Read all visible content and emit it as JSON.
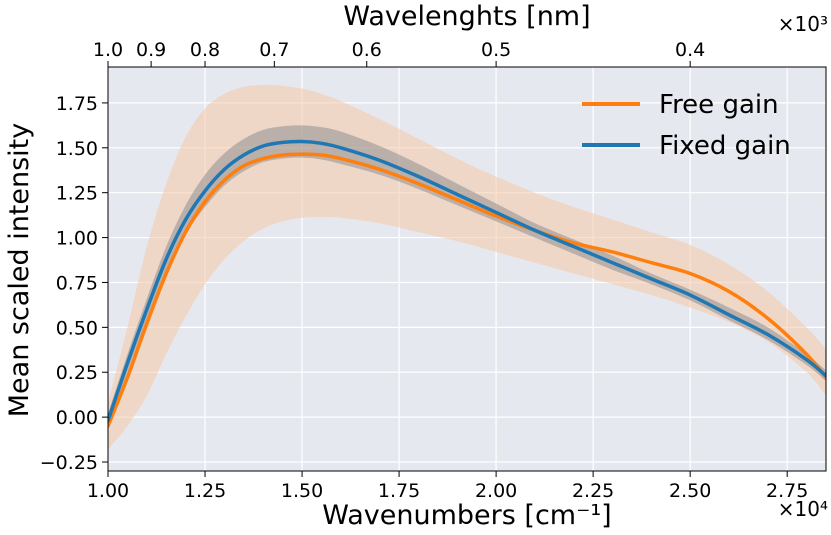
{
  "chart_data": {
    "type": "line",
    "title": "",
    "xlabel": "Wavenumbers [cm⁻¹]",
    "x_multiplier": "×10⁴",
    "ylabel": "Mean scaled intensity",
    "secondary_xlabel": "Wavelenghts [nm]",
    "secondary_x_multiplier": "×10³",
    "xlim": [
      1.0,
      2.85
    ],
    "ylim": [
      -0.3,
      1.95
    ],
    "grid": true,
    "background": "#e6e8f0",
    "x_ticks": [
      1.0,
      1.25,
      1.5,
      1.75,
      2.0,
      2.25,
      2.5,
      2.75
    ],
    "x_tick_labels": [
      "1.00",
      "1.25",
      "1.50",
      "1.75",
      "2.00",
      "2.25",
      "2.50",
      "2.75"
    ],
    "y_ticks": [
      -0.25,
      0.0,
      0.25,
      0.5,
      0.75,
      1.0,
      1.25,
      1.5,
      1.75
    ],
    "y_tick_labels": [
      "−0.25",
      "0.00",
      "0.25",
      "0.50",
      "0.75",
      "1.00",
      "1.25",
      "1.50",
      "1.75"
    ],
    "top_ticks": [
      1.0,
      0.9,
      0.8,
      0.7,
      0.6,
      0.5,
      0.4
    ],
    "top_tick_labels": [
      "1.0",
      "0.9",
      "0.8",
      "0.7",
      "0.6",
      "0.5",
      "0.4"
    ],
    "legend_position": "top-right",
    "x": [
      1.0,
      1.05,
      1.1,
      1.15,
      1.2,
      1.25,
      1.3,
      1.35,
      1.4,
      1.45,
      1.5,
      1.55,
      1.6,
      1.7,
      1.8,
      1.9,
      2.0,
      2.1,
      2.2,
      2.3,
      2.4,
      2.5,
      2.6,
      2.7,
      2.8,
      2.85
    ],
    "series": [
      {
        "name": "Free gain",
        "color": "#ff7f0e",
        "values": [
          -0.05,
          0.22,
          0.52,
          0.8,
          1.03,
          1.2,
          1.32,
          1.4,
          1.44,
          1.46,
          1.465,
          1.46,
          1.44,
          1.38,
          1.3,
          1.21,
          1.12,
          1.04,
          0.97,
          0.92,
          0.86,
          0.8,
          0.7,
          0.55,
          0.35,
          0.22
        ],
        "band_upper": [
          0.08,
          0.5,
          0.95,
          1.3,
          1.56,
          1.72,
          1.8,
          1.84,
          1.85,
          1.845,
          1.83,
          1.8,
          1.76,
          1.66,
          1.55,
          1.44,
          1.34,
          1.25,
          1.17,
          1.1,
          1.03,
          0.96,
          0.85,
          0.7,
          0.5,
          0.38
        ],
        "band_lower": [
          -0.18,
          -0.05,
          0.12,
          0.35,
          0.56,
          0.74,
          0.88,
          0.98,
          1.05,
          1.09,
          1.11,
          1.115,
          1.11,
          1.08,
          1.03,
          0.98,
          0.92,
          0.86,
          0.8,
          0.74,
          0.68,
          0.61,
          0.53,
          0.42,
          0.25,
          0.12
        ],
        "band_color": "#f5c9a8"
      },
      {
        "name": "Fixed gain",
        "color": "#1f77b4",
        "values": [
          -0.02,
          0.3,
          0.6,
          0.88,
          1.1,
          1.26,
          1.38,
          1.46,
          1.51,
          1.53,
          1.535,
          1.525,
          1.5,
          1.43,
          1.34,
          1.24,
          1.14,
          1.04,
          0.95,
          0.86,
          0.77,
          0.68,
          0.57,
          0.46,
          0.32,
          0.23
        ],
        "band_upper": [
          0.02,
          0.35,
          0.66,
          0.95,
          1.18,
          1.35,
          1.47,
          1.55,
          1.6,
          1.62,
          1.625,
          1.615,
          1.59,
          1.51,
          1.41,
          1.3,
          1.19,
          1.08,
          0.99,
          0.9,
          0.8,
          0.71,
          0.61,
          0.5,
          0.35,
          0.26
        ],
        "band_lower": [
          -0.06,
          0.25,
          0.54,
          0.81,
          1.02,
          1.17,
          1.29,
          1.37,
          1.42,
          1.44,
          1.445,
          1.435,
          1.41,
          1.35,
          1.27,
          1.18,
          1.09,
          1.0,
          0.91,
          0.82,
          0.74,
          0.65,
          0.54,
          0.43,
          0.29,
          0.2
        ],
        "band_color": "#5a6470"
      }
    ]
  }
}
